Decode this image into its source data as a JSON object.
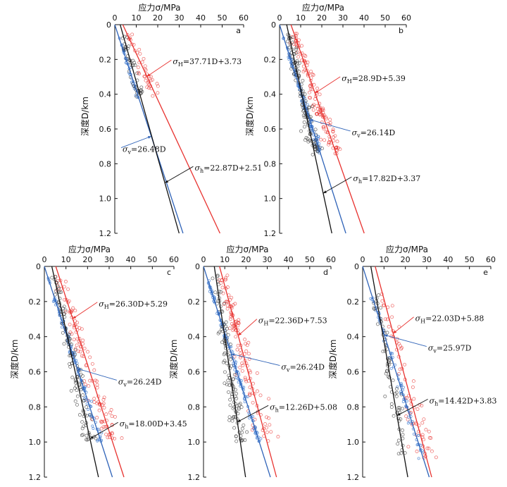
{
  "chart_data": [
    {
      "panel": "a",
      "type": "scatter",
      "xlabel": "应力σ/MPa",
      "ylabel": "深度D/km",
      "xlim": [
        0,
        60
      ],
      "ylim": [
        0,
        1.2
      ],
      "xticks": [
        "0",
        "10",
        "20",
        "30",
        "40",
        "50",
        "60"
      ],
      "yticks": [
        "0",
        "0.2",
        "0.4",
        "0.6",
        "0.8",
        "1.0",
        "1.2"
      ],
      "depth_range": [
        0.05,
        0.42
      ],
      "fits": [
        {
          "key": "H",
          "prefix": "σ",
          "sub": "H",
          "eq": "=37.71D+3.73",
          "slope": 37.71,
          "intercept": 3.73,
          "color": "#e8322f"
        },
        {
          "key": "v",
          "prefix": "σ",
          "sub": "v",
          "eq": "=26.48D",
          "slope": 26.48,
          "intercept": 0,
          "color": "#2f63b8"
        },
        {
          "key": "h",
          "prefix": "σ",
          "sub": "h",
          "eq": "=22.87D+2.51",
          "slope": 22.87,
          "intercept": 2.51,
          "color": "#111111"
        }
      ]
    },
    {
      "panel": "b",
      "type": "scatter",
      "xlabel": "应力σ/MPa",
      "ylabel": "深度D/km",
      "xlim": [
        0,
        60
      ],
      "ylim": [
        0,
        1.2
      ],
      "xticks": [
        "0",
        "10",
        "20",
        "30",
        "40",
        "50",
        "60"
      ],
      "yticks": [
        "0",
        "0.2",
        "0.4",
        "0.6",
        "0.8",
        "1.0",
        "1.2"
      ],
      "depth_range": [
        0.05,
        0.75
      ],
      "fits": [
        {
          "key": "H",
          "prefix": "σ",
          "sub": "H",
          "eq": "=28.9D+5.39",
          "slope": 28.9,
          "intercept": 5.39,
          "color": "#e8322f"
        },
        {
          "key": "v",
          "prefix": "σ",
          "sub": "v",
          "eq": "=26.14D",
          "slope": 26.14,
          "intercept": 0,
          "color": "#2f63b8"
        },
        {
          "key": "h",
          "prefix": "σ",
          "sub": "h",
          "eq": "=17.82D+3.37",
          "slope": 17.82,
          "intercept": 3.37,
          "color": "#111111"
        }
      ]
    },
    {
      "panel": "c",
      "type": "scatter",
      "xlabel": "应力σ/MPa",
      "ylabel": "深度D/km",
      "xlim": [
        0,
        60
      ],
      "ylim": [
        0,
        1.2
      ],
      "xticks": [
        "0",
        "10",
        "20",
        "30",
        "40",
        "50",
        "60"
      ],
      "yticks": [
        "0",
        "0.2",
        "0.4",
        "0.6",
        "0.8",
        "1.0",
        "1.2"
      ],
      "depth_range": [
        0.05,
        1.0
      ],
      "fits": [
        {
          "key": "H",
          "prefix": "σ",
          "sub": "H",
          "eq": "=26.30D+5.29",
          "slope": 26.3,
          "intercept": 5.29,
          "color": "#e8322f"
        },
        {
          "key": "v",
          "prefix": "σ",
          "sub": "v",
          "eq": "=26.24D",
          "slope": 26.24,
          "intercept": 0,
          "color": "#2f63b8"
        },
        {
          "key": "h",
          "prefix": "σ",
          "sub": "h",
          "eq": "=18.00D+3.45",
          "slope": 18.0,
          "intercept": 3.45,
          "color": "#111111"
        }
      ]
    },
    {
      "panel": "d",
      "type": "scatter",
      "xlabel": "应力σ/MPa",
      "ylabel": "深度D/km",
      "xlim": [
        0,
        60
      ],
      "ylim": [
        0,
        1.2
      ],
      "xticks": [
        "0",
        "10",
        "20",
        "30",
        "40",
        "50",
        "60"
      ],
      "yticks": [
        "0",
        "0.2",
        "0.4",
        "0.6",
        "0.8",
        "1.0",
        "1.2"
      ],
      "depth_range": [
        0.05,
        1.0
      ],
      "fits": [
        {
          "key": "H",
          "prefix": "σ",
          "sub": "H",
          "eq": "=22.36D+7.53",
          "slope": 22.36,
          "intercept": 7.53,
          "color": "#e8322f"
        },
        {
          "key": "v",
          "prefix": "σ",
          "sub": "v",
          "eq": "=26.24D",
          "slope": 26.24,
          "intercept": 0,
          "color": "#2f63b8"
        },
        {
          "key": "h",
          "prefix": "σ",
          "sub": "h",
          "eq": "=12.26D+5.08",
          "slope": 12.26,
          "intercept": 5.08,
          "color": "#111111"
        }
      ]
    },
    {
      "panel": "e",
      "type": "scatter",
      "xlabel": "应力σ/MPa",
      "ylabel": "深度D/km",
      "xlim": [
        0,
        60
      ],
      "ylim": [
        0,
        1.2
      ],
      "xticks": [
        "0",
        "10",
        "20",
        "30",
        "40",
        "50",
        "60"
      ],
      "yticks": [
        "0",
        "0.2",
        "0.4",
        "0.6",
        "0.8",
        "1.0",
        "1.2"
      ],
      "depth_range": [
        0.15,
        1.1
      ],
      "fits": [
        {
          "key": "H",
          "prefix": "σ",
          "sub": "H",
          "eq": "=22.03D+5.88",
          "slope": 22.03,
          "intercept": 5.88,
          "color": "#e8322f"
        },
        {
          "key": "v",
          "prefix": "σ",
          "sub": "v",
          "eq": "=25.97D",
          "slope": 25.97,
          "intercept": 0,
          "color": "#2f63b8"
        },
        {
          "key": "h",
          "prefix": "σ",
          "sub": "h",
          "eq": "=14.42D+3.83",
          "slope": 14.42,
          "intercept": 3.83,
          "color": "#111111"
        }
      ]
    }
  ]
}
